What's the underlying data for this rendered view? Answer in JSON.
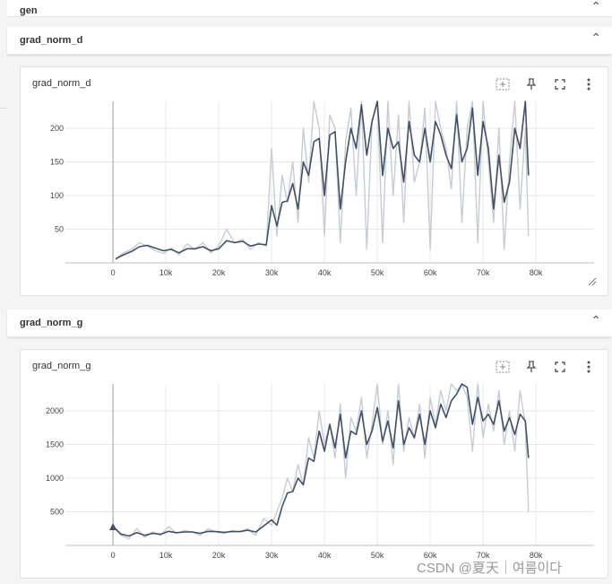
{
  "sections": {
    "gen": "gen",
    "grad_norm_d": "grad_norm_d",
    "grad_norm_g": "grad_norm_g"
  },
  "watermark": "CSDN @夏天｜여름이다",
  "icons": [
    "fit-domain-icon",
    "pin-icon",
    "fullscreen-icon",
    "more-vert-icon",
    "resize-corner-icon"
  ],
  "colors": {
    "smoothed": "#425066",
    "raw": "#c5ccd6",
    "grid": "#e8e8e8"
  },
  "chart_data": [
    {
      "type": "line",
      "title": "grad_norm_d",
      "xlim": [
        -9000,
        91000
      ],
      "ylim": [
        0,
        240
      ],
      "xticks": [
        0,
        10000,
        20000,
        30000,
        40000,
        50000,
        60000,
        70000,
        80000
      ],
      "xtick_labels": [
        "0",
        "10k",
        "20k",
        "30k",
        "40k",
        "50k",
        "60k",
        "70k",
        "80k"
      ],
      "yticks": [
        50,
        100,
        150,
        200
      ],
      "grid": true,
      "series": [
        {
          "role": "raw",
          "x": [
            500,
            2000,
            3500,
            5000,
            6500,
            8000,
            9500,
            11000,
            12500,
            14000,
            15500,
            17000,
            18500,
            20000,
            21500,
            23000,
            24500,
            26000,
            27500,
            29000,
            30000,
            31000,
            32000,
            33000,
            34000,
            35000,
            36000,
            37000,
            38000,
            39000,
            40000,
            41000,
            42000,
            43000,
            44000,
            45000,
            46000,
            47000,
            48000,
            49000,
            50000,
            51000,
            52000,
            53000,
            54000,
            55000,
            56000,
            57000,
            58000,
            59000,
            60000,
            61000,
            62000,
            63000,
            64000,
            65000,
            66000,
            67000,
            68000,
            69000,
            70000,
            71000,
            72000,
            73000,
            74000,
            75000,
            76000,
            77000,
            78000,
            78600
          ],
          "y": [
            5,
            15,
            20,
            30,
            25,
            18,
            14,
            22,
            12,
            28,
            20,
            30,
            15,
            25,
            50,
            30,
            35,
            20,
            30,
            25,
            170,
            40,
            130,
            90,
            150,
            60,
            200,
            120,
            240,
            200,
            40,
            220,
            200,
            30,
            180,
            230,
            100,
            240,
            20,
            210,
            240,
            30,
            240,
            100,
            220,
            60,
            240,
            120,
            150,
            230,
            20,
            240,
            200,
            170,
            110,
            240,
            60,
            200,
            240,
            30,
            240,
            150,
            60,
            200,
            20,
            150,
            240,
            80,
            200,
            40
          ]
        },
        {
          "role": "smoothed",
          "x": [
            500,
            2000,
            3500,
            5000,
            6500,
            8000,
            9500,
            11000,
            12500,
            14000,
            15500,
            17000,
            18500,
            20000,
            21500,
            23000,
            24500,
            26000,
            27500,
            29000,
            30000,
            31000,
            32000,
            33000,
            34000,
            35000,
            36000,
            37000,
            38000,
            39000,
            40000,
            41000,
            42000,
            43000,
            44000,
            45000,
            46000,
            47000,
            48000,
            49000,
            50000,
            51000,
            52000,
            53000,
            54000,
            55000,
            56000,
            57000,
            58000,
            59000,
            60000,
            61000,
            62000,
            63000,
            64000,
            65000,
            66000,
            67000,
            68000,
            69000,
            70000,
            71000,
            72000,
            73000,
            74000,
            75000,
            76000,
            77000,
            78000,
            78600
          ],
          "y": [
            6,
            12,
            17,
            24,
            26,
            22,
            18,
            20,
            15,
            21,
            21,
            24,
            18,
            21,
            33,
            30,
            32,
            25,
            28,
            27,
            85,
            55,
            90,
            92,
            118,
            80,
            150,
            130,
            180,
            185,
            100,
            190,
            195,
            80,
            150,
            200,
            170,
            235,
            160,
            210,
            240,
            130,
            200,
            170,
            180,
            120,
            210,
            160,
            150,
            200,
            150,
            210,
            190,
            160,
            140,
            220,
            150,
            170,
            230,
            130,
            210,
            170,
            80,
            160,
            90,
            120,
            200,
            170,
            240,
            130
          ]
        }
      ]
    },
    {
      "type": "line",
      "title": "grad_norm_g",
      "xlim": [
        -9000,
        91000
      ],
      "ylim": [
        0,
        2400
      ],
      "xticks": [
        0,
        10000,
        20000,
        30000,
        40000,
        50000,
        60000,
        70000,
        80000
      ],
      "xtick_labels": [
        "0",
        "10k",
        "20k",
        "30k",
        "40k",
        "50k",
        "60k",
        "70k",
        "80k"
      ],
      "yticks": [
        500,
        1000,
        1500,
        2000
      ],
      "yticks_labels": [
        "500",
        "1000",
        "1500",
        "2000"
      ],
      "grid": true,
      "series": [
        {
          "role": "raw",
          "x": [
            0,
            1500,
            3000,
            4500,
            6000,
            7500,
            9000,
            10500,
            12000,
            13500,
            15000,
            16500,
            18000,
            19500,
            21000,
            22500,
            24000,
            25500,
            27000,
            28500,
            30000,
            31000,
            32000,
            33000,
            34000,
            35000,
            36000,
            37000,
            38000,
            39000,
            40000,
            41000,
            42000,
            43000,
            44000,
            45000,
            46000,
            47000,
            48000,
            49000,
            50000,
            51000,
            52000,
            53000,
            54000,
            55000,
            56000,
            57000,
            58000,
            59000,
            60000,
            61000,
            62000,
            63000,
            64000,
            65000,
            66000,
            67000,
            68000,
            69000,
            70000,
            71000,
            72000,
            73000,
            74000,
            75000,
            76000,
            77000,
            78000,
            78600
          ],
          "y": [
            300,
            150,
            100,
            250,
            120,
            200,
            150,
            280,
            180,
            220,
            200,
            150,
            250,
            200,
            180,
            220,
            200,
            250,
            150,
            400,
            300,
            500,
            700,
            1000,
            800,
            1200,
            900,
            1600,
            1300,
            2000,
            1500,
            1800,
            1300,
            2100,
            1000,
            1900,
            1700,
            2200,
            1300,
            1800,
            2400,
            1500,
            2000,
            1200,
            2400,
            1400,
            1900,
            1600,
            2100,
            1300,
            2200,
            1800,
            2300,
            2000,
            2400,
            2300,
            2400,
            2200,
            1400,
            2400,
            1600,
            2100,
            1700,
            2300,
            1500,
            2000,
            1400,
            2300,
            1800,
            500
          ]
        },
        {
          "role": "smoothed",
          "x": [
            0,
            1500,
            3000,
            4500,
            6000,
            7500,
            9000,
            10500,
            12000,
            13500,
            15000,
            16500,
            18000,
            19500,
            21000,
            22500,
            24000,
            25500,
            27000,
            28500,
            30000,
            31000,
            32000,
            33000,
            34000,
            35000,
            36000,
            37000,
            38000,
            39000,
            40000,
            41000,
            42000,
            43000,
            44000,
            45000,
            46000,
            47000,
            48000,
            49000,
            50000,
            51000,
            52000,
            53000,
            54000,
            55000,
            56000,
            57000,
            58000,
            59000,
            60000,
            61000,
            62000,
            63000,
            64000,
            65000,
            66000,
            67000,
            68000,
            69000,
            70000,
            71000,
            72000,
            73000,
            74000,
            75000,
            76000,
            77000,
            78000,
            78600
          ],
          "y": [
            280,
            170,
            140,
            190,
            150,
            180,
            165,
            210,
            190,
            200,
            200,
            180,
            210,
            205,
            195,
            205,
            205,
            225,
            200,
            290,
            380,
            300,
            580,
            780,
            800,
            1000,
            900,
            1300,
            1250,
            1700,
            1400,
            1800,
            1450,
            1950,
            1300,
            1700,
            1650,
            2000,
            1500,
            1700,
            2050,
            1550,
            1850,
            1450,
            2150,
            1500,
            1750,
            1600,
            1950,
            1500,
            2000,
            1750,
            2100,
            1900,
            2150,
            2250,
            2400,
            2350,
            1800,
            2200,
            1850,
            1950,
            1800,
            2150,
            1700,
            1900,
            1650,
            1950,
            1850,
            1300
          ]
        }
      ]
    }
  ]
}
